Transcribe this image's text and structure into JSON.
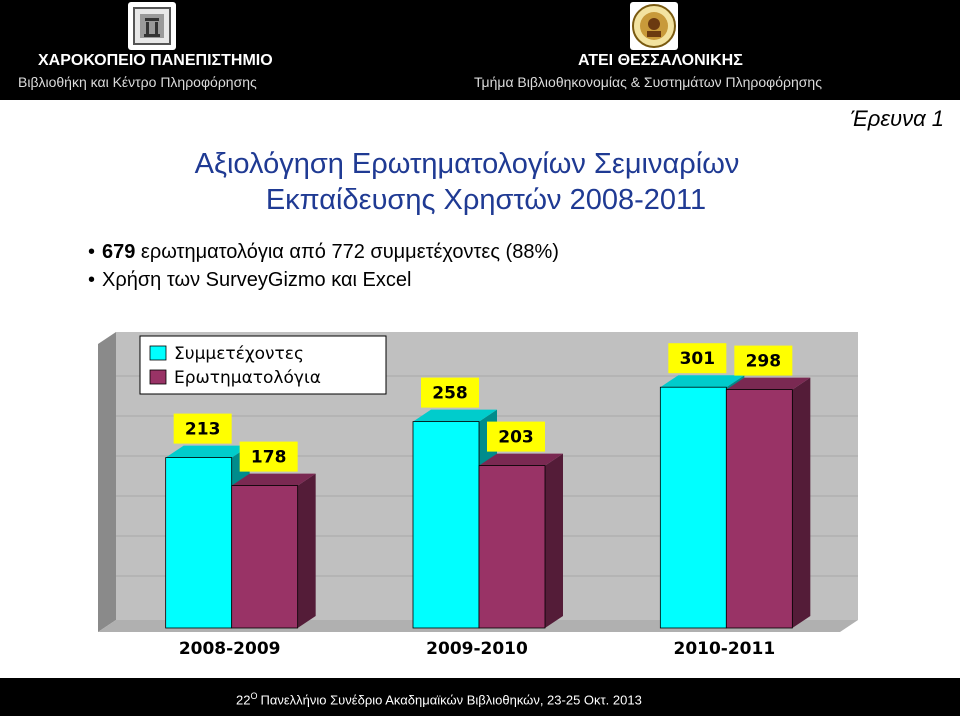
{
  "header": {
    "left_title": "ΧΑΡΟΚΟΠΕΙΟ ΠΑΝΕΠΙΣΤΗΜΙΟ",
    "left_subtitle": "Βιβλιοθήκη και Κέντρο Πληροφόρησης",
    "right_title": "ΑΤΕΙ ΘΕΣΣΑΛΟΝΙΚΗΣ",
    "right_subtitle": "Τμήμα Βιβλιοθηκονομίας & Συστημάτων Πληροφόρησης",
    "left_logo_icon": "harokopio-university-logo-icon",
    "right_logo_icon": "atei-thessaloniki-logo-icon"
  },
  "slide_label": "Έρευνα 1",
  "title": {
    "line1": "Αξιολόγηση Ερωτηματολογίων Σεμιναρίων",
    "line2": "Εκπαίδευσης Χρηστών 2008-2011"
  },
  "bullets": [
    {
      "bold": "679",
      "text": " ερωτηματολόγια από 772 συμμετέχοντες (88%)"
    },
    {
      "bold": "",
      "text": "Χρήση των SurveyGizmo και Excel"
    }
  ],
  "chart_data": {
    "type": "bar",
    "style": "3d-clustered",
    "categories": [
      "2008-2009",
      "2009-2010",
      "2010-2011"
    ],
    "series": [
      {
        "name": "Συμμετέχοντες",
        "values": [
          213,
          258,
          301
        ],
        "color": "#00ffff"
      },
      {
        "name": "Ερωτηματολόγια",
        "values": [
          178,
          203,
          298
        ],
        "color": "#993366"
      }
    ],
    "data_labels": {
      "background": "#ffff00"
    },
    "legend_position": "top-left",
    "grid": true,
    "ylim": [
      0,
      320
    ],
    "colors": {
      "plot_background": "#c0c0c0",
      "background": "#ffffff"
    }
  },
  "footer": {
    "ordinal": "22",
    "superscript": "Ο",
    "text": "Πανελλήνιο Συνέδριο Ακαδημαϊκών Βιβλιοθηκών, 23-25 Οκτ. 2013"
  }
}
